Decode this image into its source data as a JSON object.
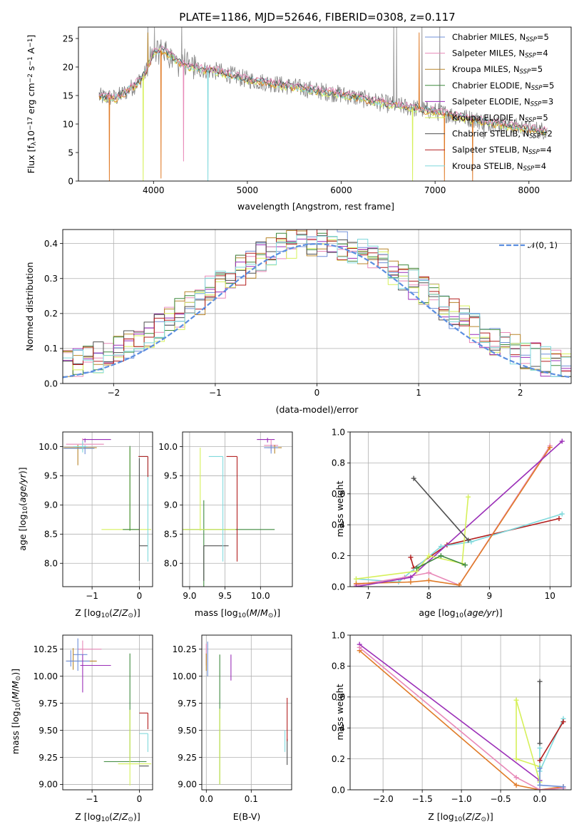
{
  "colors": {
    "Chabrier MILES": "#6f8fd8",
    "Salpeter MILES": "#e889b8",
    "Kroupa MILES": "#b8862a",
    "Chabrier ELODIE": "#3f8a3f",
    "Salpeter ELODIE": "#9b2fb8",
    "Kroupa ELODIE": "#d6f05a",
    "Chabrier STELIB": "#505050",
    "Salpeter STELIB": "#b31e1e",
    "Kroupa STELIB": "#7fd9dc",
    "orange": "#e07b28",
    "normal": "#5b8ee0",
    "data": "#808080"
  },
  "chart_data": [
    {
      "type": "line",
      "title": "PLATE=1186, MJD=52646, FIBERID=0308, z=0.117",
      "xlabel": "wavelength [Angstrom, rest frame]",
      "ylabel_main": "Flux [f",
      "ylabel_sub": "λ",
      "ylabel_mid": "10",
      "ylabel_sup": "−17",
      "ylabel_tail": " erg cm",
      "ylabel_sup2": "−2",
      "ylabel_tail2": " s",
      "ylabel_sup3": "−1",
      "ylabel_tail3": " A",
      "ylabel_sup4": "−1",
      "ylabel_end": "]",
      "xlim": [
        3200,
        8450
      ],
      "ylim": [
        0,
        27
      ],
      "xticks": [
        4000,
        5000,
        6000,
        7000,
        8000
      ],
      "yticks": [
        0,
        5,
        10,
        15,
        20,
        25
      ],
      "legend_position": "top-right",
      "legend": [
        {
          "label": "Chabrier MILES, N",
          "sub": "SSP",
          "eq": "=5",
          "color_key": "Chabrier MILES"
        },
        {
          "label": "Salpeter MILES, N",
          "sub": "SSP",
          "eq": "=4",
          "color_key": "Salpeter MILES"
        },
        {
          "label": "Kroupa MILES, N",
          "sub": "SSP",
          "eq": "=5",
          "color_key": "Kroupa MILES"
        },
        {
          "label": "Chabrier ELODIE, N",
          "sub": "SSP",
          "eq": "=5",
          "color_key": "Chabrier ELODIE"
        },
        {
          "label": "Salpeter ELODIE, N",
          "sub": "SSP",
          "eq": "=3",
          "color_key": "Salpeter ELODIE"
        },
        {
          "label": "Kroupa ELODIE, N",
          "sub": "SSP",
          "eq": "=5",
          "color_key": "Kroupa ELODIE"
        },
        {
          "label": "Chabrier STELIB, N",
          "sub": "SSP",
          "eq": "=2",
          "color_key": "Chabrier STELIB"
        },
        {
          "label": "Salpeter STELIB, N",
          "sub": "SSP",
          "eq": "=4",
          "color_key": "Salpeter STELIB"
        },
        {
          "label": "Kroupa STELIB, N",
          "sub": "SSP",
          "eq": "=4",
          "color_key": "Kroupa STELIB"
        }
      ],
      "continuum": [
        [
          3420,
          14.8
        ],
        [
          3600,
          14.6
        ],
        [
          3700,
          15.6
        ],
        [
          3800,
          16.8
        ],
        [
          3900,
          18.5
        ],
        [
          4000,
          22.5
        ],
        [
          4100,
          23
        ],
        [
          4300,
          20.5
        ],
        [
          4500,
          19.6
        ],
        [
          4700,
          19.2
        ],
        [
          5000,
          17.8
        ],
        [
          5500,
          16.5
        ],
        [
          6000,
          15.2
        ],
        [
          6500,
          13.5
        ],
        [
          7000,
          12.2
        ],
        [
          7500,
          10.5
        ],
        [
          8000,
          9.1
        ],
        [
          8200,
          8.8
        ]
      ],
      "spikes": [
        [
          3530,
          0
        ],
        [
          3890,
          0
        ],
        [
          3940,
          26
        ],
        [
          4080,
          0.5
        ],
        [
          4320,
          3.5
        ],
        [
          4580,
          0
        ],
        [
          6760,
          0
        ],
        [
          6830,
          26
        ],
        [
          7100,
          0
        ],
        [
          7400,
          0
        ],
        [
          7520,
          7.5
        ]
      ]
    },
    {
      "type": "step",
      "xlabel": "(data-model)/error",
      "ylabel": "Normed distribution",
      "xlim": [
        -2.5,
        2.5
      ],
      "ylim": [
        0,
        0.44
      ],
      "xticks": [
        -2,
        -1,
        0,
        1,
        2
      ],
      "yticks": [
        0.0,
        0.1,
        0.2,
        0.3,
        0.4
      ],
      "legend_label": "𝒩(0, 1)",
      "legend_position": "top-right",
      "bin_width": 0.1
    },
    {
      "type": "scatter",
      "xlabel": "Z [log",
      "xlabel_sub": "10",
      "xlabel_tail": "(Z/Z",
      "xlabel_sub2": "⊙",
      "xlabel_end": ")]",
      "ylabel": "age  [log",
      "ylabel_sub": "10",
      "ylabel_tail": "(age/yr)]",
      "xlim": [
        -1.62,
        0.28
      ],
      "ylim": [
        7.6,
        10.25
      ],
      "xticks": [
        -1,
        0
      ],
      "yticks": [
        8.0,
        8.5,
        9.0,
        9.5,
        10.0
      ]
    },
    {
      "type": "scatter",
      "xlabel": "mass [log",
      "xlabel_sub": "10",
      "xlabel_tail": "(M/M",
      "xlabel_sub2": "⊙",
      "xlabel_end": ")]",
      "xlim": [
        8.9,
        10.45
      ],
      "ylim": [
        7.6,
        10.25
      ],
      "xticks": [
        9.0,
        9.5,
        10.0
      ],
      "yticks": [
        8.0,
        8.5,
        9.0,
        9.5,
        10.0
      ]
    },
    {
      "type": "line",
      "xlabel": "age  [log",
      "xlabel_sub": "10",
      "xlabel_tail": "(age/yr)]",
      "ylabel": "mass weight",
      "xlim": [
        6.7,
        10.35
      ],
      "ylim": [
        0,
        1
      ],
      "xticks": [
        7,
        8,
        9,
        10
      ],
      "yticks": [
        0.0,
        0.2,
        0.4,
        0.6,
        0.8,
        1.0
      ]
    },
    {
      "type": "scatter",
      "xlabel": "Z [log",
      "xlabel_sub": "10",
      "xlabel_tail": "(Z/Z",
      "xlabel_sub2": "⊙",
      "xlabel_end": ")]",
      "ylabel": "mass [log",
      "ylabel_sub": "10",
      "ylabel_tail": "(M/M",
      "ylabel_sub2": "⊙",
      "ylabel_end": ")]",
      "xlim": [
        -1.62,
        0.28
      ],
      "ylim": [
        8.95,
        10.38
      ],
      "xticks": [
        -1,
        0
      ],
      "yticks": [
        9.0,
        9.25,
        9.5,
        9.75,
        10.0,
        10.25
      ]
    },
    {
      "type": "scatter",
      "xlabel": "E(B-V)",
      "xlim": [
        -0.01,
        0.19
      ],
      "ylim": [
        8.95,
        10.38
      ],
      "xticks": [
        0.0,
        0.1
      ],
      "yticks": [
        9.0,
        9.25,
        9.5,
        9.75,
        10.0,
        10.25
      ]
    },
    {
      "type": "line",
      "xlabel": "Z [log",
      "xlabel_sub": "10",
      "xlabel_tail": "(Z/Z",
      "xlabel_sub2": "⊙",
      "xlabel_end": ")]",
      "ylabel": "mass weight",
      "xlim": [
        -2.42,
        0.4
      ],
      "ylim": [
        0,
        1
      ],
      "xticks": [
        -2.0,
        -1.5,
        -1.0,
        -0.5,
        0.0
      ],
      "yticks": [
        0.0,
        0.2,
        0.4,
        0.6,
        0.8,
        1.0
      ]
    }
  ]
}
